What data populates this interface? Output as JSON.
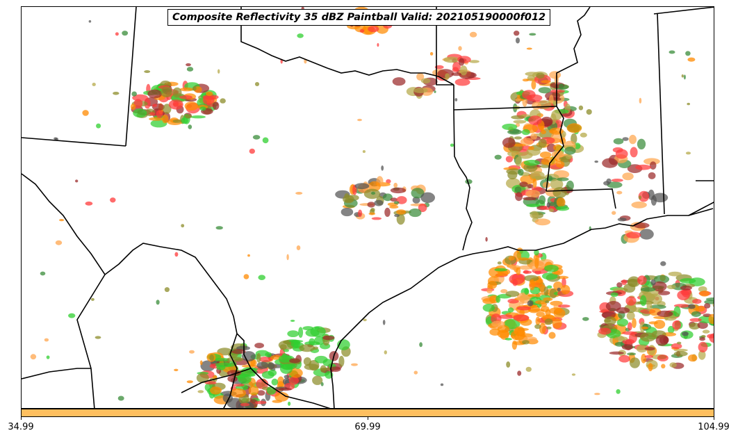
{
  "title": "Composite Reflectivity 35 dBZ Paintball Valid: 202105190000f012",
  "colorbar": {
    "color": "#ffbf5f",
    "ticks": [
      "34.99",
      "69.99",
      "104.99"
    ]
  },
  "palette": {
    "red": "#ff3a3a",
    "orange": "#ff8a00",
    "dark_red": "#9b2a2a",
    "olive": "#8c8c2a",
    "green": "#2fcf2f",
    "dark_green": "#3a8c3a",
    "gray": "#555555",
    "light_orange": "#ffa64d",
    "khaki": "#b5a94a"
  },
  "map": {
    "boundary_color": "#000000",
    "background": "#ffffff"
  }
}
